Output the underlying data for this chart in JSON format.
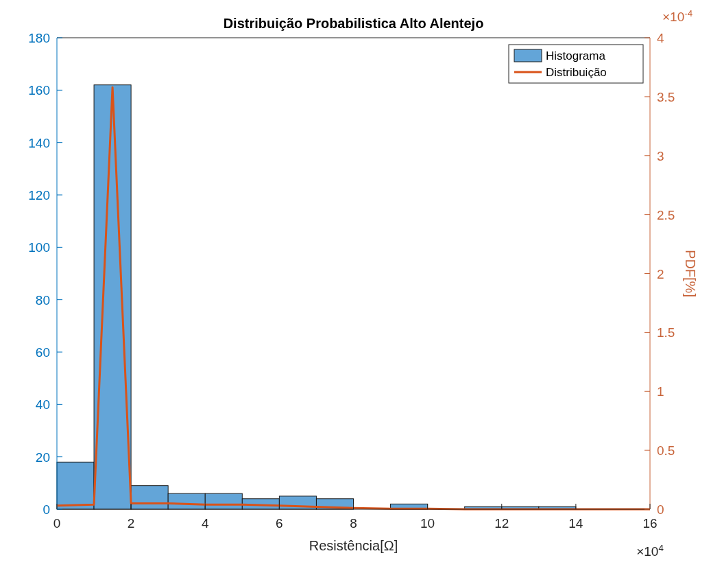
{
  "chart_data": {
    "type": "histogram",
    "title": "Distribuição Probabilistica Alto Alentejo",
    "xlabel": "Resistência[Ω]",
    "y2label": "PDF[%]",
    "bins": [
      0,
      1,
      2,
      3,
      4,
      5,
      6,
      7,
      8,
      9,
      10,
      11,
      12,
      13,
      14,
      15,
      16
    ],
    "series": [
      {
        "name": "Histograma",
        "color": "#63a5d8",
        "values": [
          18,
          162,
          9,
          6,
          6,
          4,
          5,
          4,
          0,
          2,
          0,
          1,
          1,
          1,
          0,
          0
        ]
      },
      {
        "name": "Distribuição",
        "type": "line",
        "axis": "y2",
        "color": "#d95319",
        "x": [
          0,
          1,
          1.5,
          2,
          3,
          4,
          5,
          6,
          7,
          8,
          9,
          10,
          11,
          12,
          13,
          14,
          15,
          16
        ],
        "values": [
          0.03,
          0.04,
          3.58,
          0.05,
          0.05,
          0.04,
          0.04,
          0.03,
          0.02,
          0.01,
          0.005,
          0.005,
          0,
          0,
          0,
          0,
          0,
          0
        ]
      }
    ],
    "xlim": [
      0,
      16
    ],
    "xticks": [
      0,
      2,
      4,
      6,
      8,
      10,
      12,
      14,
      16
    ],
    "ylim": [
      0,
      180
    ],
    "yticks": [
      0,
      20,
      40,
      60,
      80,
      100,
      120,
      140,
      160,
      180
    ],
    "y2lim": [
      0,
      4
    ],
    "y2ticks": [
      0,
      0.5,
      1,
      1.5,
      2,
      2.5,
      3,
      3.5,
      4
    ],
    "annotations": [
      "×10$^{4}$",
      "×10$^{-4}$"
    ],
    "legend": "top right",
    "grid": false
  }
}
